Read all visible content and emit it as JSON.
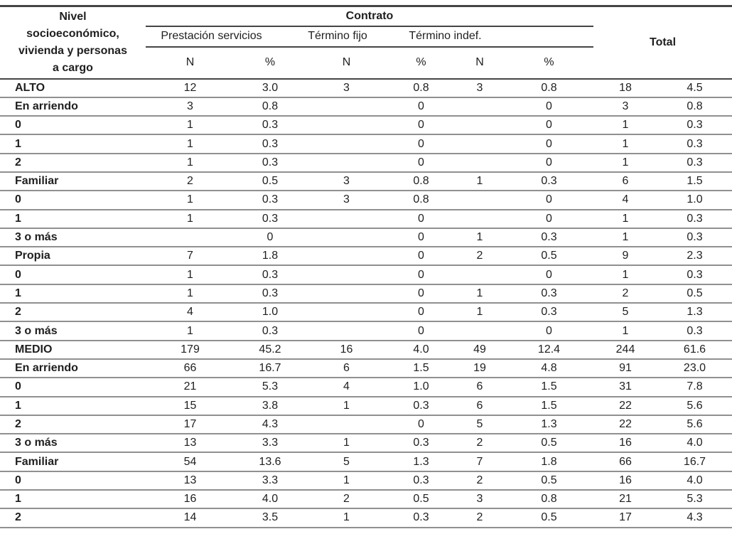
{
  "table": {
    "col1_header_lines": [
      "Nivel",
      "socioeconómico,",
      "vivienda y personas",
      "a cargo"
    ],
    "group_header": "Contrato",
    "total_header": "Total",
    "subgroups": [
      "Prestación servicios",
      "Término fijo",
      "Término indef."
    ],
    "measure_headers": [
      "N",
      "%",
      "N",
      "%",
      "N",
      "%"
    ],
    "rows": [
      {
        "label": "ALTO",
        "values": [
          "12",
          "3.0",
          "3",
          "0.8",
          "3",
          "0.8",
          "18",
          "4.5"
        ]
      },
      {
        "label": "En arriendo",
        "values": [
          "3",
          "0.8",
          "",
          "0",
          "",
          "0",
          "3",
          "0.8"
        ]
      },
      {
        "label": "0",
        "values": [
          "1",
          "0.3",
          "",
          "0",
          "",
          "0",
          "1",
          "0.3"
        ]
      },
      {
        "label": "1",
        "values": [
          "1",
          "0.3",
          "",
          "0",
          "",
          "0",
          "1",
          "0.3"
        ]
      },
      {
        "label": "2",
        "values": [
          "1",
          "0.3",
          "",
          "0",
          "",
          "0",
          "1",
          "0.3"
        ]
      },
      {
        "label": "Familiar",
        "values": [
          "2",
          "0.5",
          "3",
          "0.8",
          "1",
          "0.3",
          "6",
          "1.5"
        ]
      },
      {
        "label": "0",
        "values": [
          "1",
          "0.3",
          "3",
          "0.8",
          "",
          "0",
          "4",
          "1.0"
        ]
      },
      {
        "label": "1",
        "values": [
          "1",
          "0.3",
          "",
          "0",
          "",
          "0",
          "1",
          "0.3"
        ]
      },
      {
        "label": "3 o más",
        "values": [
          "",
          "0",
          "",
          "0",
          "1",
          "0.3",
          "1",
          "0.3"
        ]
      },
      {
        "label": "Propia",
        "values": [
          "7",
          "1.8",
          "",
          "0",
          "2",
          "0.5",
          "9",
          "2.3"
        ]
      },
      {
        "label": "0",
        "values": [
          "1",
          "0.3",
          "",
          "0",
          "",
          "0",
          "1",
          "0.3"
        ]
      },
      {
        "label": "1",
        "values": [
          "1",
          "0.3",
          "",
          "0",
          "1",
          "0.3",
          "2",
          "0.5"
        ]
      },
      {
        "label": "2",
        "values": [
          "4",
          "1.0",
          "",
          "0",
          "1",
          "0.3",
          "5",
          "1.3"
        ]
      },
      {
        "label": "3 o más",
        "values": [
          "1",
          "0.3",
          "",
          "0",
          "",
          "0",
          "1",
          "0.3"
        ]
      },
      {
        "label": "MEDIO",
        "values": [
          "179",
          "45.2",
          "16",
          "4.0",
          "49",
          "12.4",
          "244",
          "61.6"
        ]
      },
      {
        "label": "En arriendo",
        "values": [
          "66",
          "16.7",
          "6",
          "1.5",
          "19",
          "4.8",
          "91",
          "23.0"
        ]
      },
      {
        "label": "0",
        "values": [
          "21",
          "5.3",
          "4",
          "1.0",
          "6",
          "1.5",
          "31",
          "7.8"
        ]
      },
      {
        "label": "1",
        "values": [
          "15",
          "3.8",
          "1",
          "0.3",
          "6",
          "1.5",
          "22",
          "5.6"
        ]
      },
      {
        "label": "2",
        "values": [
          "17",
          "4.3",
          "",
          "0",
          "5",
          "1.3",
          "22",
          "5.6"
        ]
      },
      {
        "label": "3 o más",
        "values": [
          "13",
          "3.3",
          "1",
          "0.3",
          "2",
          "0.5",
          "16",
          "4.0"
        ]
      },
      {
        "label": "Familiar",
        "values": [
          "54",
          "13.6",
          "5",
          "1.3",
          "7",
          "1.8",
          "66",
          "16.7"
        ]
      },
      {
        "label": "0",
        "values": [
          "13",
          "3.3",
          "1",
          "0.3",
          "2",
          "0.5",
          "16",
          "4.0"
        ]
      },
      {
        "label": "1",
        "values": [
          "16",
          "4.0",
          "2",
          "0.5",
          "3",
          "0.8",
          "21",
          "5.3"
        ]
      },
      {
        "label": "2",
        "values": [
          "14",
          "3.5",
          "1",
          "0.3",
          "2",
          "0.5",
          "17",
          "4.3"
        ]
      }
    ]
  }
}
